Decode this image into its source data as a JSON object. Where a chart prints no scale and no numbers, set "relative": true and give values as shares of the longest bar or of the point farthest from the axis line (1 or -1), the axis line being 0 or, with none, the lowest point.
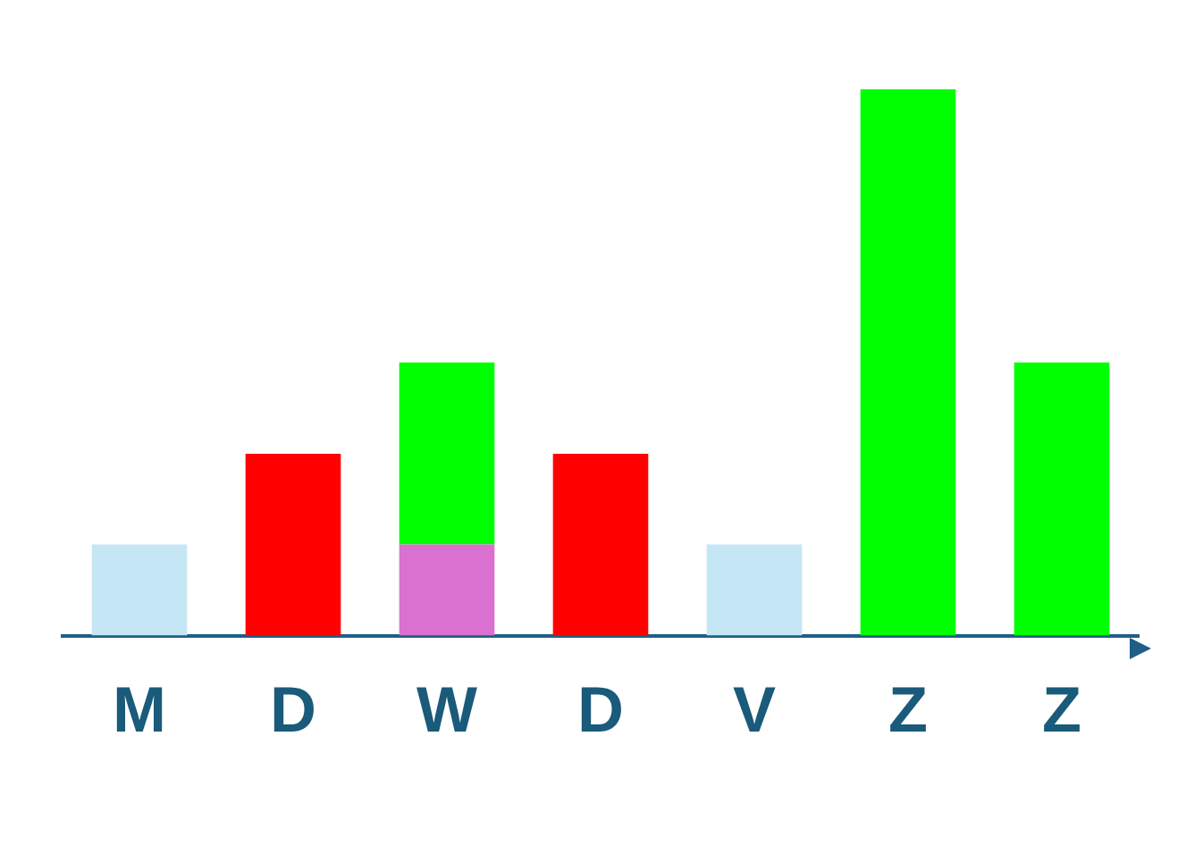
{
  "chart_data": {
    "type": "bar",
    "relative": true,
    "stacked": true,
    "categories": [
      "M",
      "D",
      "W",
      "D",
      "V",
      "Z",
      "Z"
    ],
    "legend": false,
    "grid": false,
    "series": [
      {
        "colors": [
          "#c5e6f5",
          "#ff0000",
          "#da70cf",
          "#ff0000",
          "#c5e6f5",
          "#00ff00",
          "#00ff00"
        ],
        "values": [
          0.167,
          0.333,
          0.167,
          0.333,
          0.167,
          1,
          0.5
        ]
      },
      {
        "color": "#00ff00",
        "values": [
          null,
          null,
          0.333,
          null,
          null,
          null,
          null
        ]
      }
    ]
  }
}
